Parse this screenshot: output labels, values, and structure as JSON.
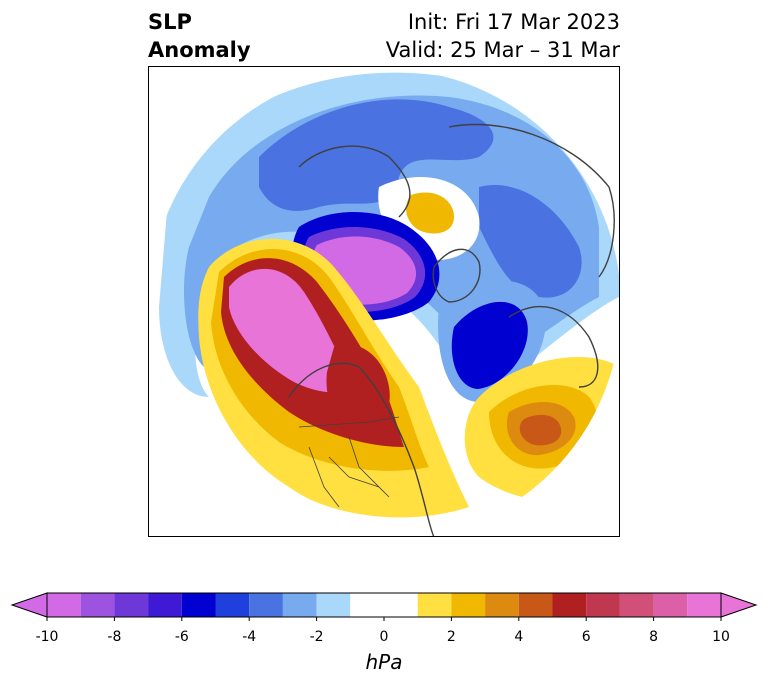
{
  "title": {
    "left_line1": "SLP",
    "left_line2": "Anomaly",
    "right_line1": "Init: Fri 17 Mar 2023",
    "right_line2": "Valid: 25 Mar – 31 Mar"
  },
  "map": {
    "projection": "north-polar-stereographic",
    "field": "sea level pressure anomaly",
    "features": [
      {
        "name": "negative-anomaly-arctic-ocean-canada",
        "min_value": -10,
        "color": "#d070e8"
      },
      {
        "name": "negative-anomaly-north-atlantic",
        "min_value": -6,
        "color": "#0000d0"
      },
      {
        "name": "negative-anomaly-siberia",
        "min_value": -4,
        "color": "#4a72e0"
      },
      {
        "name": "positive-anomaly-northeast-pacific",
        "max_value": 10,
        "color": "#e070d8"
      },
      {
        "name": "positive-anomaly-north-america",
        "max_value": 6,
        "color": "#b82222"
      },
      {
        "name": "positive-anomaly-east-atlantic",
        "max_value": 5,
        "color": "#c84f1a"
      },
      {
        "name": "positive-anomaly-barents-kara",
        "max_value": 2,
        "color": "#f0b800"
      }
    ]
  },
  "colorbar": {
    "unit": "hPa",
    "extend": "both",
    "tick_labels": [
      "-10",
      "-8",
      "-6",
      "-4",
      "-2",
      "0",
      "2",
      "4",
      "6",
      "8",
      "10"
    ],
    "bins": [
      {
        "range": "-10 to -9",
        "color": "#d26ae6"
      },
      {
        "range": "-9 to -8",
        "color": "#9e52e0"
      },
      {
        "range": "-8 to -7",
        "color": "#6e38d8"
      },
      {
        "range": "-7 to -6",
        "color": "#3e1ad6"
      },
      {
        "range": "-6 to -5",
        "color": "#0000d0"
      },
      {
        "range": "-5 to -4",
        "color": "#2040de"
      },
      {
        "range": "-4 to -3",
        "color": "#4a72e0"
      },
      {
        "range": "-3 to -2",
        "color": "#78aaf0"
      },
      {
        "range": "-2 to -1",
        "color": "#aad8fa"
      },
      {
        "range": "-1 to 1",
        "color": "#ffffff"
      },
      {
        "range": "1 to 2",
        "color": "#ffe040"
      },
      {
        "range": "2 to 3",
        "color": "#f0b800"
      },
      {
        "range": "3 to 4",
        "color": "#dd8a10"
      },
      {
        "range": "4 to 5",
        "color": "#c85818"
      },
      {
        "range": "5 to 6",
        "color": "#b02020"
      },
      {
        "range": "6 to 7",
        "color": "#c03850"
      },
      {
        "range": "7 to 8",
        "color": "#d05078"
      },
      {
        "range": "8 to 9",
        "color": "#dc60a8"
      },
      {
        "range": "9 to 10",
        "color": "#e874d8"
      }
    ],
    "under_color": "#d26ae6",
    "over_color": "#e874d8"
  }
}
